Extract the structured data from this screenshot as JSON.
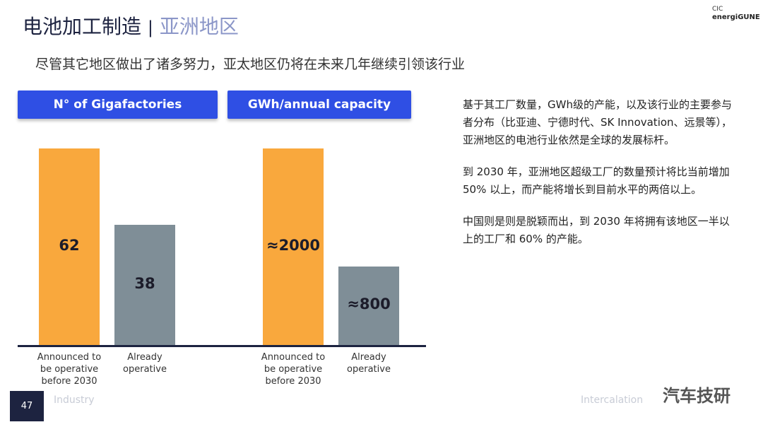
{
  "header": {
    "title": "电池加工制造",
    "title_separator": "|",
    "title_region": "亚洲地区",
    "subtitle": "尽管其它地区做出了诸多努力，亚太地区仍将在未来几年继续引领该行业"
  },
  "logo": {
    "top": "CIC",
    "name": "energiGUNE"
  },
  "chart_data": [
    {
      "type": "bar",
      "title": "N° of Gigafactories",
      "categories": [
        "Announced to be operative before 2030",
        "Already operative"
      ],
      "values": [
        62,
        38
      ],
      "colors": [
        "#f9a83d",
        "#7f8e97"
      ]
    },
    {
      "type": "bar",
      "title": "GWh/annual capacity",
      "categories": [
        "Announced to be operative before 2030",
        "Already operative"
      ],
      "values": [
        2000,
        800
      ],
      "value_labels": [
        "≈2000",
        "≈800"
      ],
      "colors": [
        "#f9a83d",
        "#7f8e97"
      ]
    }
  ],
  "text": {
    "paragraphs": [
      "基于其工厂数量，GWh级的产能，以及该行业的主要参与者分布（比亚迪、宁德时代、SK Innovation、远景等），亚洲地区的电池行业依然是全球的发展标杆。",
      "到 2030 年，亚洲地区超级工厂的数量预计将比当前增加 50% 以上，而产能将增长到目前水平的两倍以上。",
      "中国则是则是脱颖而出，到 2030 年将拥有该地区一半以上的工厂和 60% 的产能。"
    ]
  },
  "footer": {
    "page": "47",
    "left": "Industry",
    "right": "Intercalation",
    "watermark": "汽车技研"
  }
}
